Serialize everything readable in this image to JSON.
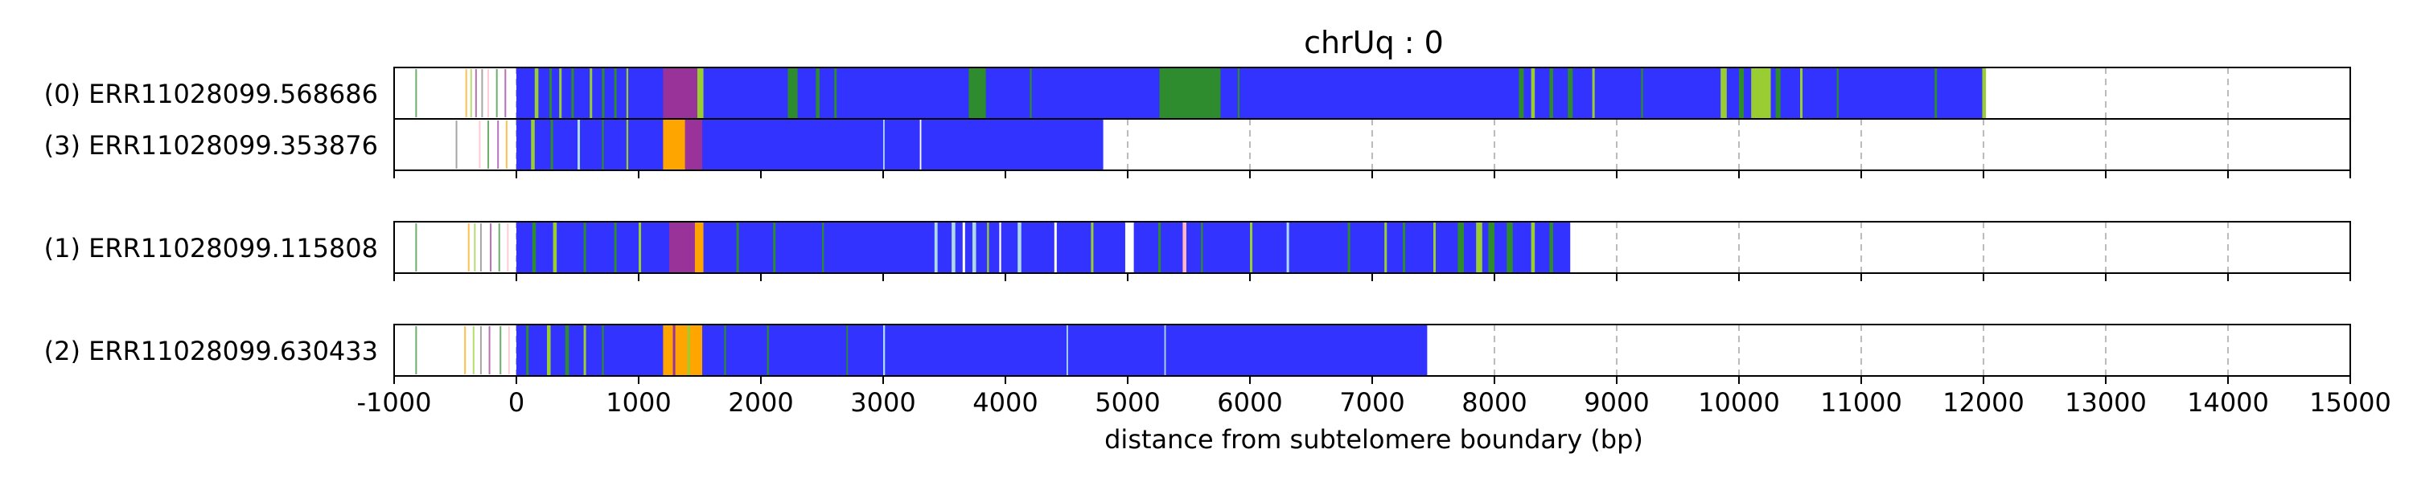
{
  "chart_data": {
    "type": "bar",
    "title": "chrUq : 0",
    "xlabel": "distance from subtelomere boundary (bp)",
    "ylabel": "",
    "xlim": [
      -1000,
      15000
    ],
    "x_ticks": [
      -1000,
      0,
      1000,
      2000,
      3000,
      4000,
      5000,
      6000,
      7000,
      8000,
      9000,
      10000,
      11000,
      12000,
      13000,
      14000,
      15000
    ],
    "x_tick_labels": [
      "-1000",
      "0",
      "1000",
      "2000",
      "3000",
      "4000",
      "5000",
      "6000",
      "7000",
      "8000",
      "9000",
      "10000",
      "11000",
      "12000",
      "13000",
      "14000",
      "15000"
    ],
    "grid": "vertical dashed",
    "colors": {
      "blue": "#3333ff",
      "green": "#2e8b2e",
      "olive": "#9acd32",
      "orange": "#ffa500",
      "purple": "#993399",
      "lightblue": "#add8e6",
      "pink": "#ffb6c1",
      "gray": "#808080",
      "white": "#ffffff"
    },
    "reads": [
      {
        "label": "(0) ERR11028099.568686",
        "group": 0,
        "end": 12020,
        "segments": [
          {
            "start": 0,
            "end": 12020,
            "color": "blue"
          },
          {
            "start": 150,
            "end": 180,
            "color": "olive"
          },
          {
            "start": 270,
            "end": 290,
            "color": "green"
          },
          {
            "start": 350,
            "end": 370,
            "color": "olive"
          },
          {
            "start": 450,
            "end": 470,
            "color": "green"
          },
          {
            "start": 600,
            "end": 620,
            "color": "olive"
          },
          {
            "start": 700,
            "end": 720,
            "color": "green"
          },
          {
            "start": 800,
            "end": 820,
            "color": "green"
          },
          {
            "start": 900,
            "end": 915,
            "color": "olive"
          },
          {
            "start": 1200,
            "end": 1480,
            "color": "purple"
          },
          {
            "start": 1480,
            "end": 1530,
            "color": "olive"
          },
          {
            "start": 2220,
            "end": 2300,
            "color": "green"
          },
          {
            "start": 2450,
            "end": 2480,
            "color": "green"
          },
          {
            "start": 2600,
            "end": 2620,
            "color": "green"
          },
          {
            "start": 3700,
            "end": 3840,
            "color": "green"
          },
          {
            "start": 4200,
            "end": 4215,
            "color": "green"
          },
          {
            "start": 5260,
            "end": 5760,
            "color": "green"
          },
          {
            "start": 5900,
            "end": 5915,
            "color": "green"
          },
          {
            "start": 8200,
            "end": 8240,
            "color": "green"
          },
          {
            "start": 8300,
            "end": 8330,
            "color": "olive"
          },
          {
            "start": 8450,
            "end": 8480,
            "color": "green"
          },
          {
            "start": 8600,
            "end": 8640,
            "color": "green"
          },
          {
            "start": 8800,
            "end": 8820,
            "color": "olive"
          },
          {
            "start": 9200,
            "end": 9215,
            "color": "green"
          },
          {
            "start": 9850,
            "end": 9900,
            "color": "olive"
          },
          {
            "start": 10000,
            "end": 10040,
            "color": "green"
          },
          {
            "start": 10100,
            "end": 10260,
            "color": "olive"
          },
          {
            "start": 10300,
            "end": 10340,
            "color": "green"
          },
          {
            "start": 10500,
            "end": 10520,
            "color": "olive"
          },
          {
            "start": 10800,
            "end": 10815,
            "color": "green"
          },
          {
            "start": 11600,
            "end": 11620,
            "color": "green"
          },
          {
            "start": 11990,
            "end": 12020,
            "color": "olive"
          }
        ],
        "ticks": [
          {
            "pos": -820,
            "color": "green"
          },
          {
            "pos": -410,
            "color": "orange"
          },
          {
            "pos": -370,
            "color": "olive"
          },
          {
            "pos": -330,
            "color": "purple"
          },
          {
            "pos": -280,
            "color": "gray"
          },
          {
            "pos": -230,
            "color": "pink"
          },
          {
            "pos": -160,
            "color": "green"
          },
          {
            "pos": -90,
            "color": "purple"
          }
        ]
      },
      {
        "label": "(3) ERR11028099.353876",
        "group": 0,
        "end": 4800,
        "segments": [
          {
            "start": 0,
            "end": 4800,
            "color": "blue"
          },
          {
            "start": 120,
            "end": 150,
            "color": "olive"
          },
          {
            "start": 280,
            "end": 300,
            "color": "green"
          },
          {
            "start": 500,
            "end": 520,
            "color": "lightblue"
          },
          {
            "start": 700,
            "end": 715,
            "color": "green"
          },
          {
            "start": 900,
            "end": 915,
            "color": "olive"
          },
          {
            "start": 1200,
            "end": 1380,
            "color": "orange"
          },
          {
            "start": 1380,
            "end": 1520,
            "color": "purple"
          },
          {
            "start": 3000,
            "end": 3012,
            "color": "lightblue"
          },
          {
            "start": 3300,
            "end": 3312,
            "color": "white"
          }
        ],
        "ticks": [
          {
            "pos": -490,
            "color": "gray"
          },
          {
            "pos": -300,
            "color": "pink"
          },
          {
            "pos": -230,
            "color": "green"
          },
          {
            "pos": -150,
            "color": "purple"
          },
          {
            "pos": -80,
            "color": "orange"
          }
        ]
      },
      {
        "label": "(1) ERR11028099.115808",
        "group": 1,
        "end": 8620,
        "segments": [
          {
            "start": 0,
            "end": 8620,
            "color": "blue"
          },
          {
            "start": 130,
            "end": 160,
            "color": "green"
          },
          {
            "start": 300,
            "end": 330,
            "color": "olive"
          },
          {
            "start": 550,
            "end": 570,
            "color": "green"
          },
          {
            "start": 800,
            "end": 820,
            "color": "green"
          },
          {
            "start": 1000,
            "end": 1020,
            "color": "olive"
          },
          {
            "start": 1250,
            "end": 1460,
            "color": "purple"
          },
          {
            "start": 1460,
            "end": 1530,
            "color": "orange"
          },
          {
            "start": 1800,
            "end": 1820,
            "color": "green"
          },
          {
            "start": 2100,
            "end": 2120,
            "color": "green"
          },
          {
            "start": 2500,
            "end": 2515,
            "color": "green"
          },
          {
            "start": 3420,
            "end": 3445,
            "color": "lightblue"
          },
          {
            "start": 3560,
            "end": 3590,
            "color": "lightblue"
          },
          {
            "start": 3650,
            "end": 3670,
            "color": "white"
          },
          {
            "start": 3730,
            "end": 3760,
            "color": "lightblue"
          },
          {
            "start": 3850,
            "end": 3865,
            "color": "olive"
          },
          {
            "start": 3950,
            "end": 3965,
            "color": "white"
          },
          {
            "start": 4100,
            "end": 4130,
            "color": "lightblue"
          },
          {
            "start": 4400,
            "end": 4420,
            "color": "white"
          },
          {
            "start": 4700,
            "end": 4720,
            "color": "olive"
          },
          {
            "start": 4980,
            "end": 5050,
            "color": "white"
          },
          {
            "start": 5250,
            "end": 5270,
            "color": "green"
          },
          {
            "start": 5450,
            "end": 5480,
            "color": "pink"
          },
          {
            "start": 5600,
            "end": 5615,
            "color": "green"
          },
          {
            "start": 6000,
            "end": 6020,
            "color": "olive"
          },
          {
            "start": 6300,
            "end": 6320,
            "color": "lightblue"
          },
          {
            "start": 6800,
            "end": 6820,
            "color": "green"
          },
          {
            "start": 7100,
            "end": 7120,
            "color": "olive"
          },
          {
            "start": 7250,
            "end": 7270,
            "color": "green"
          },
          {
            "start": 7500,
            "end": 7520,
            "color": "olive"
          },
          {
            "start": 7700,
            "end": 7750,
            "color": "green"
          },
          {
            "start": 7850,
            "end": 7900,
            "color": "olive"
          },
          {
            "start": 7950,
            "end": 8000,
            "color": "green"
          },
          {
            "start": 8100,
            "end": 8150,
            "color": "green"
          },
          {
            "start": 8300,
            "end": 8330,
            "color": "olive"
          },
          {
            "start": 8450,
            "end": 8480,
            "color": "green"
          }
        ],
        "ticks": [
          {
            "pos": -820,
            "color": "green"
          },
          {
            "pos": -390,
            "color": "orange"
          },
          {
            "pos": -340,
            "color": "olive"
          },
          {
            "pos": -290,
            "color": "gray"
          },
          {
            "pos": -210,
            "color": "purple"
          },
          {
            "pos": -140,
            "color": "green"
          },
          {
            "pos": -70,
            "color": "pink"
          }
        ]
      },
      {
        "label": "(2) ERR11028099.630433",
        "group": 2,
        "end": 7450,
        "segments": [
          {
            "start": 0,
            "end": 7450,
            "color": "blue"
          },
          {
            "start": 80,
            "end": 100,
            "color": "green"
          },
          {
            "start": 250,
            "end": 280,
            "color": "olive"
          },
          {
            "start": 400,
            "end": 430,
            "color": "green"
          },
          {
            "start": 550,
            "end": 570,
            "color": "olive"
          },
          {
            "start": 700,
            "end": 715,
            "color": "green"
          },
          {
            "start": 1200,
            "end": 1520,
            "color": "orange"
          },
          {
            "start": 1280,
            "end": 1300,
            "color": "purple"
          },
          {
            "start": 1400,
            "end": 1420,
            "color": "olive"
          },
          {
            "start": 1700,
            "end": 1715,
            "color": "green"
          },
          {
            "start": 2050,
            "end": 2065,
            "color": "green"
          },
          {
            "start": 2700,
            "end": 2712,
            "color": "green"
          },
          {
            "start": 3000,
            "end": 3015,
            "color": "lightblue"
          },
          {
            "start": 4500,
            "end": 4512,
            "color": "lightblue"
          },
          {
            "start": 5300,
            "end": 5312,
            "color": "lightblue"
          }
        ],
        "ticks": [
          {
            "pos": -820,
            "color": "green"
          },
          {
            "pos": -420,
            "color": "orange"
          },
          {
            "pos": -350,
            "color": "olive"
          },
          {
            "pos": -290,
            "color": "gray"
          },
          {
            "pos": -220,
            "color": "purple"
          },
          {
            "pos": -130,
            "color": "green"
          },
          {
            "pos": -60,
            "color": "pink"
          }
        ]
      }
    ]
  }
}
